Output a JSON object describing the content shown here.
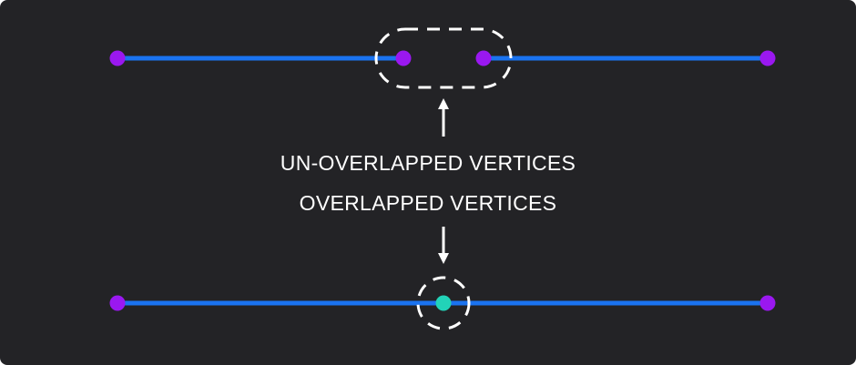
{
  "labels": {
    "top": "UN-OVERLAPPED VERTICES",
    "bottom": "OVERLAPPED VERTICES"
  },
  "colors": {
    "background": "#232326",
    "edge": "#1a73f0",
    "vertex": "#9a18f0",
    "merged_vertex": "#22d3b8",
    "annotation": "#ffffff"
  }
}
